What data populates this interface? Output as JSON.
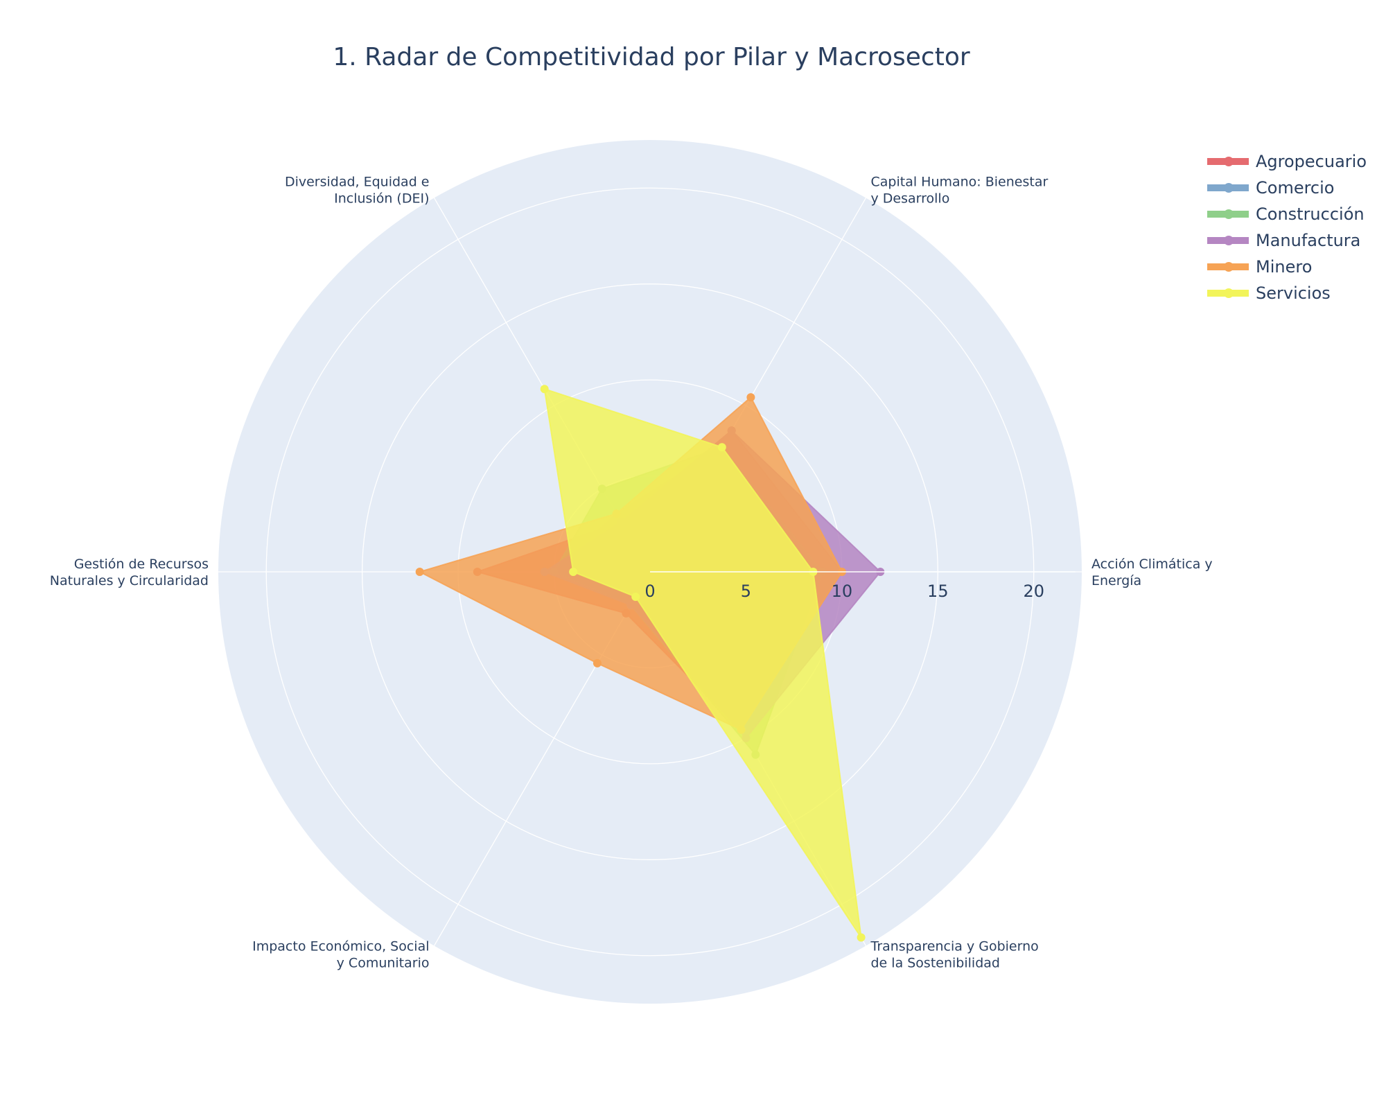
{
  "title": "1. Radar de Competitividad por Pilar y Macrosector",
  "chart_data": {
    "type": "radar",
    "title": "1. Radar de Competitividad por Pilar y Macrosector",
    "axes": [
      [
        "Acción Climática y",
        "Energía"
      ],
      [
        "Capital Humano: Bienestar",
        "y Desarrollo"
      ],
      [
        "Diversidad, Equidad e",
        "Inclusión (DEI)"
      ],
      [
        "Gestión de Recursos",
        "Naturales y Circularidad"
      ],
      [
        "Impacto Económico, Social",
        "y Comunitario"
      ],
      [
        "Transparencia y Gobierno",
        "de la Sostenibilidad"
      ]
    ],
    "radial_range": [
      0,
      22.5
    ],
    "radial_ticks": [
      "0",
      "5",
      "10",
      "15",
      "20"
    ],
    "grid": true,
    "legend_position": "top-right",
    "series": [
      {
        "name": "Agropecuario",
        "color": "#e56b6f",
        "values": [
          10,
          8.5,
          3,
          9,
          2.5,
          9.5
        ]
      },
      {
        "name": "Comercio",
        "color": "#7fa7cc",
        "values": [
          9,
          7.5,
          3.5,
          5,
          1.5,
          9
        ]
      },
      {
        "name": "Construcción",
        "color": "#8fcf8a",
        "values": [
          9,
          7.5,
          5,
          5,
          2,
          11
        ]
      },
      {
        "name": "Manufactura",
        "color": "#b586c2",
        "values": [
          12,
          8.5,
          3,
          5.5,
          2,
          10
        ]
      },
      {
        "name": "Minero",
        "color": "#f6a355",
        "values": [
          10,
          10.5,
          3.5,
          12,
          5.5,
          9.5
        ]
      },
      {
        "name": "Servicios",
        "color": "#f2f45a",
        "values": [
          8.5,
          7.5,
          11,
          4,
          1.5,
          22
        ]
      }
    ]
  }
}
